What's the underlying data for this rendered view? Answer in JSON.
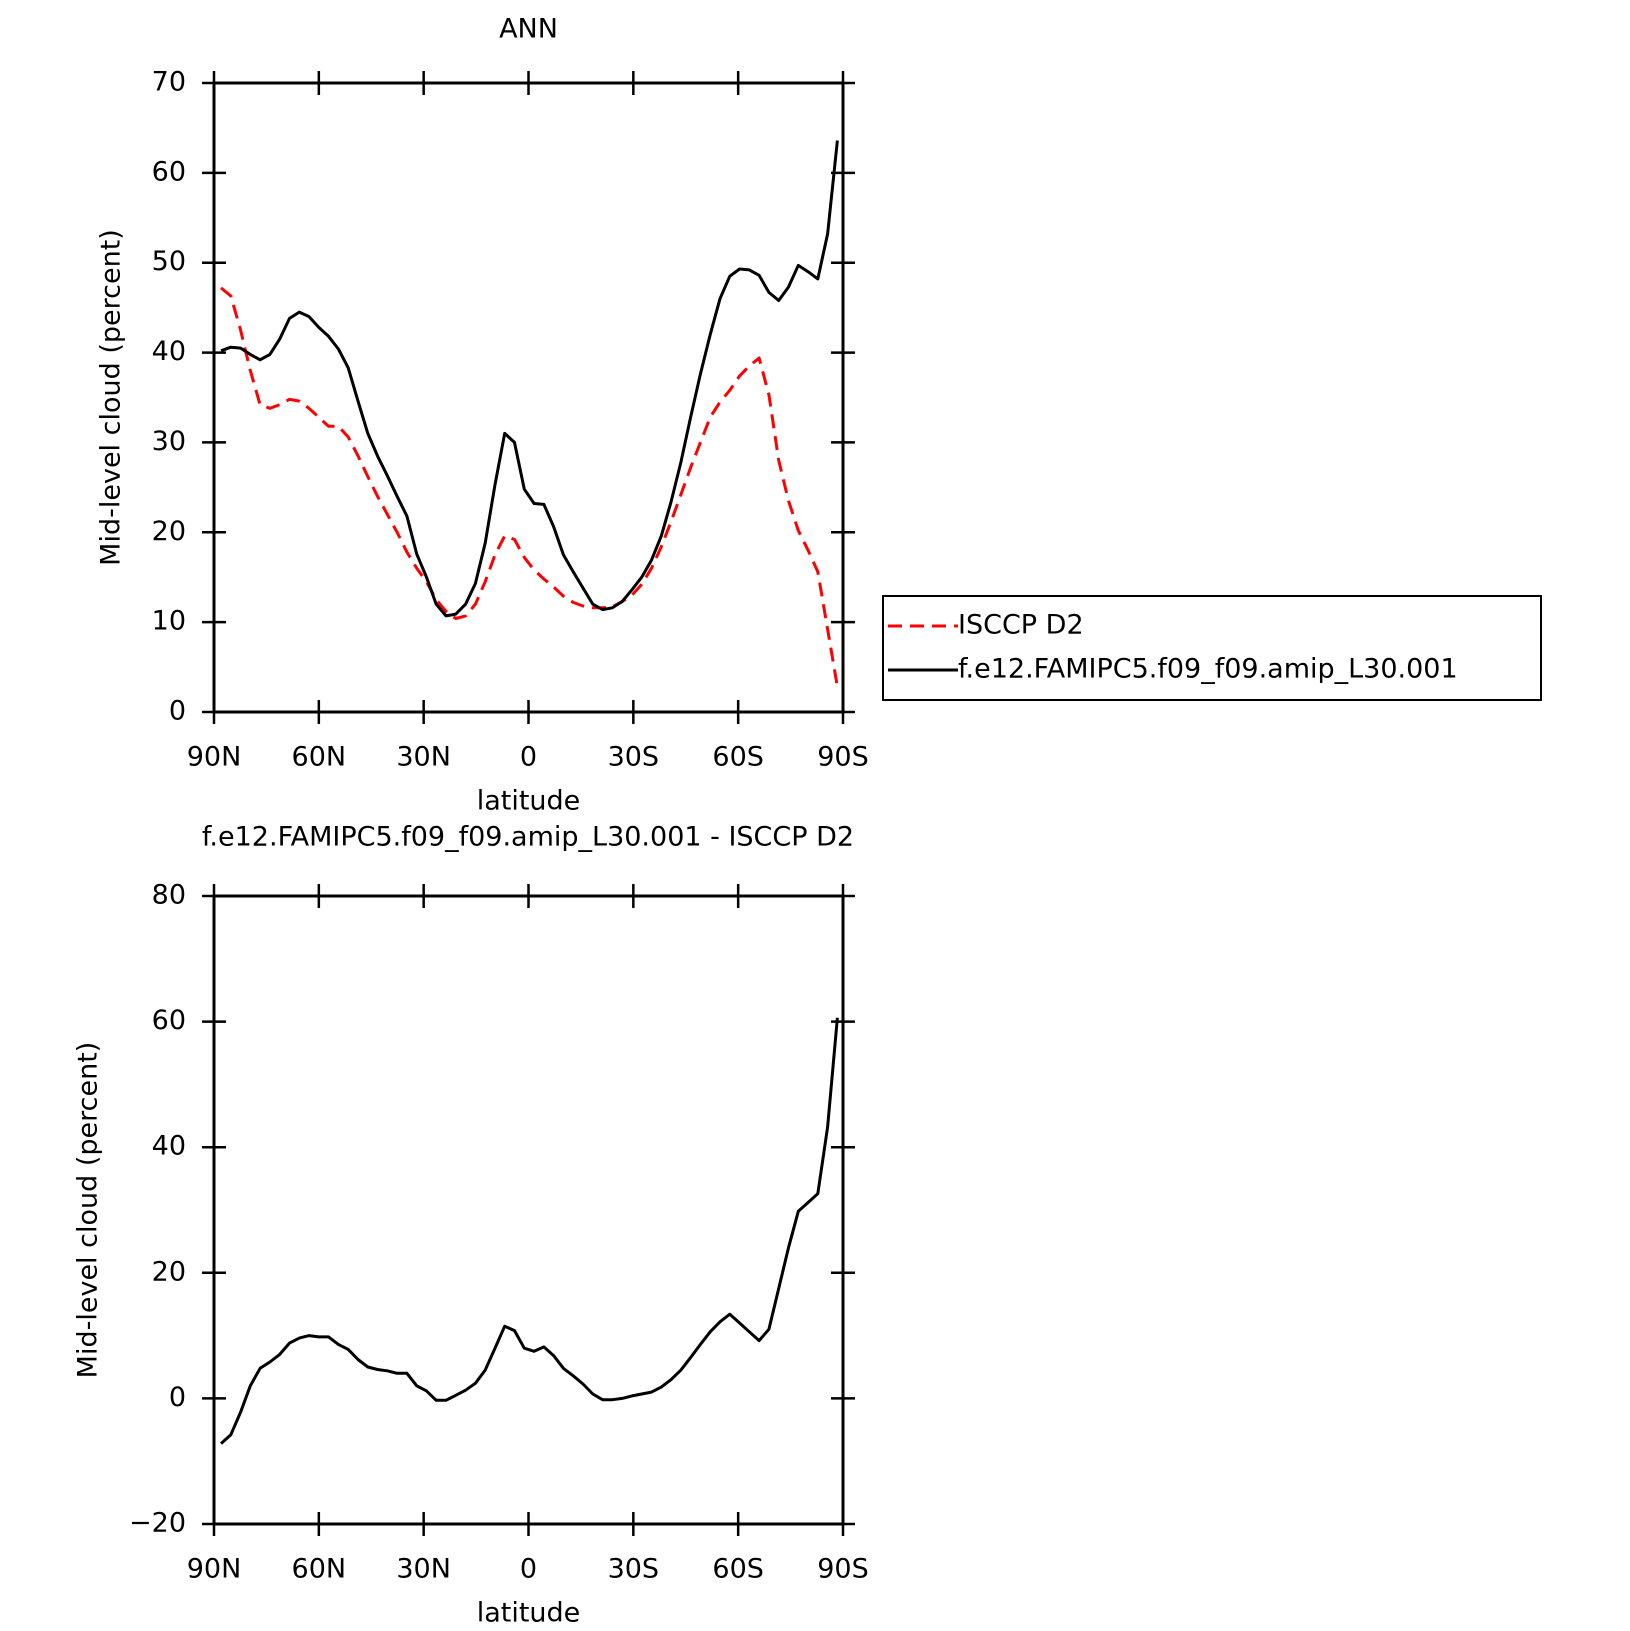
{
  "chart_data": [
    {
      "type": "line",
      "title": "ANN",
      "xlabel": "latitude",
      "ylabel": "Mid-level cloud (percent)",
      "x": [
        88.0,
        85.2,
        82.4,
        79.6,
        76.8,
        74.0,
        71.2,
        68.4,
        65.6,
        62.8,
        60.0,
        57.2,
        54.4,
        51.6,
        48.8,
        46.0,
        43.2,
        40.4,
        37.6,
        34.8,
        32.0,
        29.2,
        26.4,
        23.6,
        20.8,
        18.0,
        15.2,
        12.4,
        9.6,
        6.8,
        4.0,
        1.2,
        -1.6,
        -4.4,
        -7.2,
        -10.0,
        -12.8,
        -15.6,
        -18.4,
        -21.2,
        -24.0,
        -26.8,
        -29.6,
        -32.4,
        -35.2,
        -38.0,
        -40.8,
        -43.6,
        -46.4,
        -49.2,
        -52.0,
        -54.8,
        -57.6,
        -60.4,
        -63.2,
        -66.0,
        -68.8,
        -71.6,
        -74.4,
        -77.2,
        -80.0,
        -82.8,
        -85.6,
        -88.4
      ],
      "series": [
        {
          "name": "ISCCP D2",
          "color": "#ff0000",
          "dashed": true,
          "values": [
            47.2,
            46.3,
            42.5,
            38.0,
            34.2,
            33.8,
            34.2,
            34.8,
            34.6,
            33.8,
            32.8,
            31.8,
            31.8,
            30.6,
            28.5,
            26.2,
            24.0,
            22.0,
            20.0,
            17.8,
            16.0,
            14.5,
            12.5,
            11.2,
            10.4,
            10.7,
            12.0,
            14.5,
            17.5,
            19.6,
            19.2,
            17.2,
            15.8,
            14.8,
            13.9,
            12.9,
            12.2,
            11.8,
            11.6,
            11.6,
            11.7,
            12.3,
            13.0,
            14.2,
            16.0,
            18.4,
            21.2,
            24.2,
            27.2,
            30.0,
            32.8,
            34.5,
            35.8,
            37.4,
            38.5,
            39.4,
            35.3,
            28.0,
            23.5,
            20.2,
            18.0,
            15.6,
            9.2,
            2.8
          ]
        },
        {
          "name": "f.e12.FAMIPC5.f09_f09.amip_L30.001",
          "color": "#000000",
          "dashed": false,
          "values": [
            40.2,
            40.6,
            40.5,
            39.8,
            39.2,
            39.8,
            41.5,
            43.8,
            44.5,
            44.0,
            42.8,
            41.8,
            40.4,
            38.3,
            34.6,
            31.0,
            28.5,
            26.3,
            24.0,
            21.8,
            17.6,
            15.0,
            12.0,
            10.7,
            10.9,
            12.0,
            14.3,
            18.8,
            25.3,
            31.0,
            30.0,
            24.8,
            23.2,
            23.1,
            20.6,
            17.5,
            15.6,
            13.8,
            12.0,
            11.4,
            11.6,
            12.3,
            13.6,
            15.0,
            16.9,
            19.6,
            23.4,
            27.8,
            32.8,
            37.6,
            42.0,
            46.0,
            48.5,
            49.3,
            49.2,
            48.6,
            46.7,
            45.8,
            47.3,
            49.7,
            49.0,
            48.2,
            53.2,
            63.6
          ]
        }
      ],
      "xlim": [
        90,
        -90
      ],
      "xticks": [
        {
          "value": 90,
          "label": "90N"
        },
        {
          "value": 60,
          "label": "60N"
        },
        {
          "value": 30,
          "label": "30N"
        },
        0,
        {
          "value": -30,
          "label": "30S"
        },
        {
          "value": -60,
          "label": "60S"
        },
        {
          "value": -90,
          "label": "90S"
        }
      ],
      "ylim": [
        0,
        70
      ],
      "yticks": [
        0,
        10,
        20,
        30,
        40,
        50,
        60,
        70
      ],
      "legend": "right"
    },
    {
      "type": "line",
      "title": "f.e12.FAMIPC5.f09_f09.amip_L30.001 - ISCCP D2",
      "xlabel": "latitude",
      "ylabel": "Mid-level cloud (percent)",
      "x": [
        88.0,
        85.2,
        82.4,
        79.6,
        76.8,
        74.0,
        71.2,
        68.4,
        65.6,
        62.8,
        60.0,
        57.2,
        54.4,
        51.6,
        48.8,
        46.0,
        43.2,
        40.4,
        37.6,
        34.8,
        32.0,
        29.2,
        26.4,
        23.6,
        20.8,
        18.0,
        15.2,
        12.4,
        9.6,
        6.8,
        4.0,
        1.2,
        -1.6,
        -4.4,
        -7.2,
        -10.0,
        -12.8,
        -15.6,
        -18.4,
        -21.2,
        -24.0,
        -26.8,
        -29.6,
        -32.4,
        -35.2,
        -38.0,
        -40.8,
        -43.6,
        -46.4,
        -49.2,
        -52.0,
        -54.8,
        -57.6,
        -60.4,
        -63.2,
        -66.0,
        -68.8,
        -71.6,
        -74.4,
        -77.2,
        -80.0,
        -82.8,
        -85.6,
        -88.4
      ],
      "series": [
        {
          "color": "#000000",
          "dashed": false,
          "values": [
            -7.2,
            -5.8,
            -2.2,
            2,
            4.8,
            5.8,
            7,
            8.8,
            9.6,
            10,
            9.8,
            9.8,
            8.6,
            7.8,
            6.2,
            5,
            4.6,
            4.4,
            4,
            4,
            2,
            1.2,
            -0.3,
            -0.3,
            0.5,
            1.3,
            2.4,
            4.5,
            8,
            11.5,
            10.8,
            8,
            7.5,
            8.2,
            6.8,
            4.8,
            3.6,
            2.3,
            0.7,
            -0.2,
            -0.2,
            0,
            0.4,
            0.7,
            1,
            1.8,
            3,
            4.5,
            6.5,
            8.6,
            10.6,
            12.2,
            13.4,
            12,
            10.6,
            9.2,
            11,
            17.5,
            24,
            29.8,
            31.2,
            32.6,
            43.2,
            60.6
          ]
        }
      ],
      "xlim": [
        90,
        -90
      ],
      "xticks": [
        {
          "value": 90,
          "label": "90N"
        },
        {
          "value": 60,
          "label": "60N"
        },
        {
          "value": 30,
          "label": "30N"
        },
        0,
        {
          "value": -30,
          "label": "30S"
        },
        {
          "value": -60,
          "label": "60S"
        },
        {
          "value": -90,
          "label": "90S"
        }
      ],
      "ylim": [
        -20,
        80
      ],
      "yticks": [
        {
          "value": -20,
          "label": "−20"
        },
        0,
        20,
        40,
        60,
        80
      ]
    }
  ]
}
